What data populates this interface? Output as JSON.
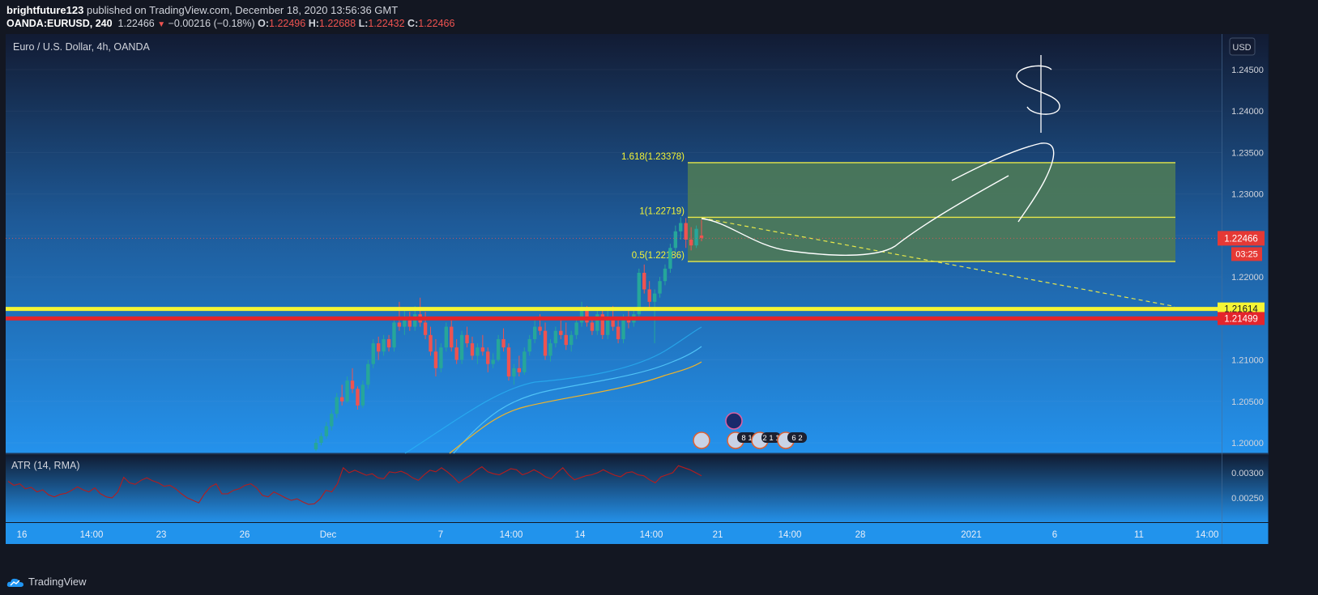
{
  "header": {
    "author": "brightfuture123",
    "published_text": "published on TradingView.com, December 18, 2020 13:56:36 GMT",
    "symbol": "OANDA:EURUSD, 240",
    "last": "1.22466",
    "change": "−0.00216 (−0.18%)",
    "o_label": "O:",
    "o": "1.22496",
    "h_label": "H:",
    "h": "1.22688",
    "l_label": "L:",
    "l": "1.22432",
    "c_label": "C:",
    "c": "1.22466"
  },
  "footer": {
    "brand": "TradingView"
  },
  "colors": {
    "bg_top": "#131c33",
    "bg_bottom": "#2490e8",
    "up": "#26a69a",
    "down": "#ef5350",
    "yellow_line": "#f5f535",
    "red_line": "#e4252c",
    "fib_zone": "#4e7a58",
    "ema_fast": "#29b6f6",
    "ema_slow": "#f0b429",
    "atr_line": "#b71c1c"
  },
  "chart_data": {
    "type": "candlestick",
    "title": "Euro / U.S. Dollar, 4h, OANDA",
    "currency": "USD",
    "ylim": [
      1.1995,
      1.2475
    ],
    "yticks": [
      "1.24500",
      "1.24000",
      "1.23500",
      "1.23000",
      "1.22500",
      "1.22000",
      "1.21500",
      "1.21000",
      "1.20500",
      "1.20000"
    ],
    "xticks": [
      "16",
      "14:00",
      "23",
      "26",
      "Dec",
      "7",
      "14:00",
      "14",
      "14:00",
      "21",
      "14:00",
      "28",
      "2021",
      "6",
      "11",
      "14:00"
    ],
    "last_price": "1.22466",
    "countdown": "03:25",
    "levels": [
      {
        "name": "yellow-level",
        "label": "1.21614",
        "value": 1.21614
      },
      {
        "name": "red-level",
        "label": "1.21499",
        "value": 1.21499
      }
    ],
    "fib": [
      {
        "label": "1.618(1.23378)",
        "value": 1.23378
      },
      {
        "label": "1(1.22719)",
        "value": 1.22719
      },
      {
        "label": "0.5(1.22186)",
        "value": 1.22186
      }
    ],
    "candles": [
      [
        1.1992,
        1.2005,
        1.199,
        1.2
      ],
      [
        1.2,
        1.2012,
        1.1997,
        1.2008
      ],
      [
        1.2008,
        1.2025,
        1.2005,
        1.202
      ],
      [
        1.202,
        1.204,
        1.2015,
        1.2035
      ],
      [
        1.2035,
        1.206,
        1.203,
        1.2055
      ],
      [
        1.2055,
        1.207,
        1.2045,
        1.205
      ],
      [
        1.205,
        1.208,
        1.2048,
        1.2075
      ],
      [
        1.2075,
        1.209,
        1.206,
        1.2065
      ],
      [
        1.2065,
        1.2068,
        1.204,
        1.2045
      ],
      [
        1.2045,
        1.2075,
        1.2042,
        1.207
      ],
      [
        1.207,
        1.21,
        1.2065,
        1.2095
      ],
      [
        1.2095,
        1.2125,
        1.209,
        1.212
      ],
      [
        1.212,
        1.2128,
        1.21,
        1.211
      ],
      [
        1.211,
        1.213,
        1.2105,
        1.2125
      ],
      [
        1.2125,
        1.213,
        1.211,
        1.2115
      ],
      [
        1.2115,
        1.215,
        1.211,
        1.2145
      ],
      [
        1.2145,
        1.217,
        1.2135,
        1.214
      ],
      [
        1.214,
        1.216,
        1.213,
        1.215
      ],
      [
        1.215,
        1.2158,
        1.2135,
        1.214
      ],
      [
        1.214,
        1.2165,
        1.2135,
        1.2155
      ],
      [
        1.2155,
        1.2175,
        1.214,
        1.2145
      ],
      [
        1.2145,
        1.2158,
        1.2125,
        1.213
      ],
      [
        1.213,
        1.214,
        1.2105,
        1.211
      ],
      [
        1.211,
        1.2125,
        1.208,
        1.209
      ],
      [
        1.209,
        1.212,
        1.2085,
        1.2115
      ],
      [
        1.2115,
        1.2145,
        1.211,
        1.214
      ],
      [
        1.214,
        1.215,
        1.211,
        1.2115
      ],
      [
        1.2115,
        1.2125,
        1.2095,
        1.21
      ],
      [
        1.21,
        1.2135,
        1.2095,
        1.213
      ],
      [
        1.213,
        1.214,
        1.2115,
        1.212
      ],
      [
        1.212,
        1.2128,
        1.21,
        1.2105
      ],
      [
        1.2105,
        1.212,
        1.2095,
        1.2115
      ],
      [
        1.2115,
        1.213,
        1.2105,
        1.211
      ],
      [
        1.211,
        1.2115,
        1.2085,
        1.2095
      ],
      [
        1.2095,
        1.2108,
        1.209,
        1.21
      ],
      [
        1.21,
        1.213,
        1.2098,
        1.2125
      ],
      [
        1.2125,
        1.2138,
        1.211,
        1.2115
      ],
      [
        1.2115,
        1.212,
        1.2075,
        1.208
      ],
      [
        1.208,
        1.2095,
        1.207,
        1.209
      ],
      [
        1.209,
        1.2105,
        1.208,
        1.2085
      ],
      [
        1.2085,
        1.2115,
        1.2082,
        1.211
      ],
      [
        1.211,
        1.213,
        1.2105,
        1.2125
      ],
      [
        1.2125,
        1.2148,
        1.212,
        1.214
      ],
      [
        1.214,
        1.2155,
        1.213,
        1.2135
      ],
      [
        1.2135,
        1.2145,
        1.21,
        1.2105
      ],
      [
        1.2105,
        1.2125,
        1.2098,
        1.212
      ],
      [
        1.212,
        1.214,
        1.2115,
        1.2135
      ],
      [
        1.2135,
        1.215,
        1.2125,
        1.213
      ],
      [
        1.213,
        1.2145,
        1.2112,
        1.2118
      ],
      [
        1.2118,
        1.2135,
        1.211,
        1.213
      ],
      [
        1.213,
        1.215,
        1.2125,
        1.2145
      ],
      [
        1.2145,
        1.217,
        1.214,
        1.216
      ],
      [
        1.216,
        1.2165,
        1.214,
        1.2145
      ],
      [
        1.2145,
        1.2152,
        1.213,
        1.2135
      ],
      [
        1.2135,
        1.216,
        1.213,
        1.2155
      ],
      [
        1.2155,
        1.2162,
        1.2125,
        1.213
      ],
      [
        1.213,
        1.216,
        1.2125,
        1.215
      ],
      [
        1.215,
        1.2165,
        1.2135,
        1.214
      ],
      [
        1.214,
        1.215,
        1.212,
        1.2125
      ],
      [
        1.2125,
        1.2155,
        1.212,
        1.215
      ],
      [
        1.215,
        1.216,
        1.2138,
        1.2145
      ],
      [
        1.2145,
        1.2162,
        1.214,
        1.2155
      ],
      [
        1.2155,
        1.221,
        1.215,
        1.2205
      ],
      [
        1.2205,
        1.2215,
        1.218,
        1.2185
      ],
      [
        1.2185,
        1.2195,
        1.216,
        1.217
      ],
      [
        1.217,
        1.2185,
        1.212,
        1.218
      ],
      [
        1.218,
        1.22,
        1.2175,
        1.2195
      ],
      [
        1.2195,
        1.2215,
        1.219,
        1.221
      ],
      [
        1.221,
        1.224,
        1.2205,
        1.2235
      ],
      [
        1.2235,
        1.2262,
        1.223,
        1.2255
      ],
      [
        1.2255,
        1.2272,
        1.2245,
        1.2265
      ],
      [
        1.2265,
        1.2271,
        1.2235,
        1.2245
      ],
      [
        1.2245,
        1.226,
        1.2232,
        1.2238
      ],
      [
        1.2238,
        1.2262,
        1.2235,
        1.2258
      ],
      [
        1.225,
        1.2269,
        1.2243,
        1.2247
      ]
    ],
    "atr_indicator": {
      "title": "ATR (14, RMA)",
      "yticks": [
        "0.00300",
        "0.00250"
      ],
      "ylim": [
        0.0023,
        0.0032
      ],
      "values": [
        0.00283,
        0.00275,
        0.00278,
        0.00268,
        0.00271,
        0.00262,
        0.00266,
        0.00256,
        0.00252,
        0.00257,
        0.00259,
        0.00265,
        0.00272,
        0.00266,
        0.00262,
        0.0027,
        0.00258,
        0.00252,
        0.0025,
        0.00262,
        0.00291,
        0.0028,
        0.00277,
        0.00285,
        0.0029,
        0.00284,
        0.0028,
        0.00273,
        0.00275,
        0.00268,
        0.00258,
        0.0025,
        0.00245,
        0.0024,
        0.00258,
        0.00272,
        0.00278,
        0.00258,
        0.00258,
        0.00265,
        0.00268,
        0.00275,
        0.00278,
        0.0027,
        0.00255,
        0.00252,
        0.00262,
        0.00256,
        0.0025,
        0.00245,
        0.00248,
        0.00242,
        0.00237,
        0.00238,
        0.00248,
        0.00265,
        0.00262,
        0.00278,
        0.0031,
        0.003,
        0.00305,
        0.003,
        0.00295,
        0.00298,
        0.0029,
        0.00288,
        0.00302,
        0.003,
        0.00303,
        0.00298,
        0.0029,
        0.00285,
        0.00296,
        0.00305,
        0.00302,
        0.0031,
        0.00302,
        0.00292,
        0.0028,
        0.00288,
        0.00295,
        0.00305,
        0.00312,
        0.00302,
        0.00298,
        0.00296,
        0.00302,
        0.00308,
        0.00306,
        0.00296,
        0.003,
        0.00306,
        0.003,
        0.00292,
        0.00288,
        0.003,
        0.0031,
        0.00296,
        0.00286,
        0.0029,
        0.00294,
        0.00296,
        0.003,
        0.00306,
        0.003,
        0.00295,
        0.00292,
        0.003,
        0.00302,
        0.00296,
        0.00294,
        0.00286,
        0.0028,
        0.00292,
        0.00296,
        0.003,
        0.00314,
        0.0031,
        0.00306,
        0.003,
        0.00294
      ]
    },
    "events": [
      {
        "name": "event-eu",
        "badge": ""
      },
      {
        "name": "event-us-1",
        "badge": ""
      },
      {
        "name": "event-us-2",
        "badge": "8 1"
      },
      {
        "name": "event-us-3",
        "badge": "2 1 1"
      },
      {
        "name": "event-us-4",
        "badge": "6 2"
      }
    ],
    "annotations": [
      {
        "name": "dollar-sign-drawing",
        "text": "$"
      }
    ]
  }
}
